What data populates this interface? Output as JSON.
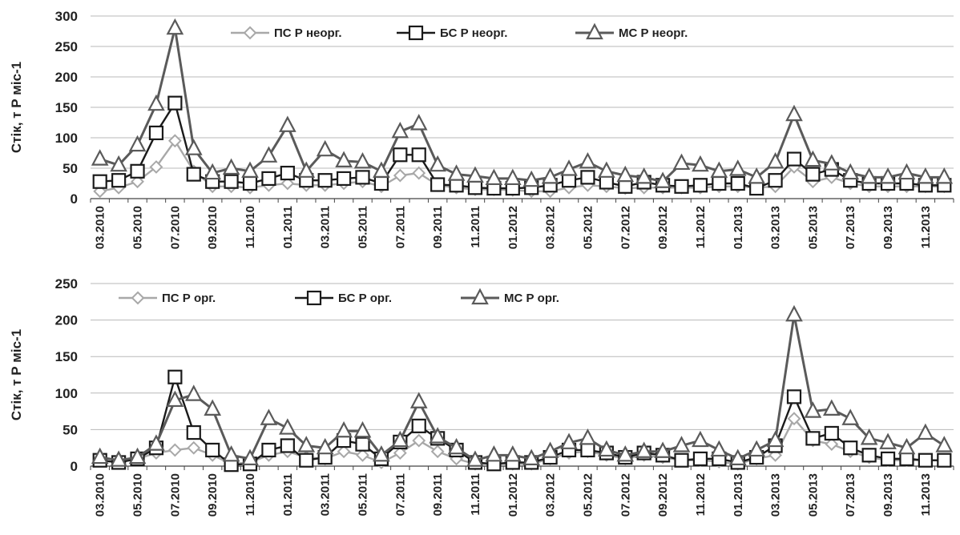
{
  "chart_data": [
    {
      "type": "line",
      "ylabel": "Стік, т Р міс-1",
      "ylim": [
        0,
        300
      ],
      "yticks": [
        0,
        50,
        100,
        150,
        200,
        250,
        300
      ],
      "grid": true,
      "legend_position": "top",
      "categories": [
        "03.2010",
        "04.2010",
        "05.2010",
        "06.2010",
        "07.2010",
        "08.2010",
        "09.2010",
        "10.2010",
        "11.2010",
        "12.2010",
        "01.2011",
        "02.2011",
        "03.2011",
        "04.2011",
        "05.2011",
        "06.2011",
        "07.2011",
        "08.2011",
        "09.2011",
        "10.2011",
        "11.2011",
        "12.2011",
        "01.2012",
        "02.2012",
        "03.2012",
        "04.2012",
        "05.2012",
        "06.2012",
        "07.2012",
        "08.2012",
        "09.2012",
        "10.2012",
        "11.2012",
        "12.2012",
        "01.2013",
        "02.2013",
        "03.2013",
        "04.2013",
        "05.2013",
        "06.2013",
        "07.2013",
        "08.2013",
        "09.2013",
        "10.2013",
        "11.2013",
        "12.2013"
      ],
      "tick_labels": [
        "03.2010",
        "05.2010",
        "07.2010",
        "09.2010",
        "11.2010",
        "01.2011",
        "03.2011",
        "05.2011",
        "07.2011",
        "09.2011",
        "11.2011",
        "01.2012",
        "03.2012",
        "05.2012",
        "07.2012",
        "09.2012",
        "11.2012",
        "01.2013",
        "03.2013",
        "05.2013",
        "07.2013",
        "09.2013",
        "11.2013"
      ],
      "series": [
        {
          "name": "ПС Р неорг.",
          "marker": "diamond",
          "color": "#a8a8a8",
          "values": [
            12,
            18,
            28,
            52,
            95,
            45,
            20,
            20,
            18,
            22,
            25,
            22,
            22,
            25,
            28,
            20,
            38,
            42,
            22,
            18,
            15,
            15,
            14,
            12,
            12,
            18,
            22,
            20,
            17,
            18,
            18,
            18,
            18,
            20,
            20,
            18,
            20,
            52,
            28,
            35,
            25,
            20,
            20,
            20,
            20,
            20
          ]
        },
        {
          "name": "БС Р неорг.",
          "marker": "square",
          "color": "#1a1a1a",
          "values": [
            28,
            30,
            45,
            108,
            157,
            40,
            28,
            28,
            25,
            33,
            42,
            30,
            30,
            33,
            35,
            25,
            72,
            72,
            23,
            22,
            18,
            17,
            17,
            18,
            22,
            30,
            35,
            27,
            20,
            27,
            22,
            20,
            22,
            25,
            25,
            17,
            30,
            65,
            40,
            48,
            30,
            25,
            25,
            25,
            22,
            22
          ]
        },
        {
          "name": "МС Р неорг.",
          "marker": "triangle",
          "color": "#5a5a5a",
          "values": [
            65,
            55,
            88,
            155,
            280,
            82,
            42,
            50,
            45,
            70,
            120,
            45,
            80,
            62,
            60,
            45,
            110,
            123,
            55,
            40,
            37,
            33,
            33,
            30,
            35,
            48,
            60,
            45,
            38,
            35,
            28,
            58,
            55,
            45,
            48,
            35,
            60,
            138,
            63,
            57,
            42,
            35,
            35,
            42,
            35,
            35
          ]
        }
      ]
    },
    {
      "type": "line",
      "ylabel": "Стік, т Р міс-1",
      "ylim": [
        0,
        250
      ],
      "yticks": [
        0,
        50,
        100,
        150,
        200,
        250
      ],
      "grid": true,
      "legend_position": "top",
      "categories": [
        "03.2010",
        "04.2010",
        "05.2010",
        "06.2010",
        "07.2010",
        "08.2010",
        "09.2010",
        "10.2010",
        "11.2010",
        "12.2010",
        "01.2011",
        "02.2011",
        "03.2011",
        "04.2011",
        "05.2011",
        "06.2011",
        "07.2011",
        "08.2011",
        "09.2011",
        "10.2011",
        "11.2011",
        "12.2011",
        "01.2012",
        "02.2012",
        "03.2012",
        "04.2012",
        "05.2012",
        "06.2012",
        "07.2012",
        "08.2012",
        "09.2012",
        "10.2012",
        "11.2012",
        "12.2012",
        "01.2013",
        "02.2013",
        "03.2013",
        "04.2013",
        "05.2013",
        "06.2013",
        "07.2013",
        "08.2013",
        "09.2013",
        "10.2013",
        "11.2013",
        "12.2013"
      ],
      "tick_labels": [
        "03.2010",
        "05.2010",
        "07.2010",
        "09.2010",
        "11.2010",
        "01.2011",
        "03.2011",
        "05.2011",
        "07.2011",
        "09.2011",
        "11.2011",
        "01.2012",
        "03.2012",
        "05.2012",
        "07.2012",
        "09.2012",
        "11.2012",
        "01.2013",
        "03.2013",
        "05.2013",
        "07.2013",
        "09.2013",
        "11.2013"
      ],
      "series": [
        {
          "name": "ПС Р орг.",
          "marker": "diamond",
          "color": "#a8a8a8",
          "values": [
            8,
            5,
            10,
            18,
            22,
            25,
            15,
            3,
            5,
            15,
            20,
            12,
            10,
            20,
            15,
            5,
            18,
            35,
            20,
            10,
            3,
            3,
            3,
            3,
            10,
            18,
            20,
            15,
            10,
            15,
            12,
            8,
            8,
            6,
            3,
            10,
            15,
            65,
            35,
            30,
            20,
            12,
            8,
            8,
            8,
            8
          ]
        },
        {
          "name": "БС Р орг.",
          "marker": "square",
          "color": "#1a1a1a",
          "values": [
            8,
            5,
            10,
            25,
            122,
            46,
            22,
            2,
            3,
            22,
            28,
            8,
            12,
            35,
            30,
            10,
            33,
            55,
            38,
            22,
            5,
            3,
            5,
            5,
            12,
            22,
            22,
            18,
            12,
            18,
            15,
            8,
            10,
            10,
            5,
            12,
            28,
            95,
            38,
            45,
            25,
            15,
            10,
            10,
            8,
            8
          ]
        },
        {
          "name": "МС Р орг.",
          "marker": "triangle",
          "color": "#5a5a5a",
          "values": [
            12,
            8,
            12,
            30,
            90,
            98,
            78,
            15,
            10,
            65,
            52,
            28,
            25,
            48,
            48,
            15,
            35,
            88,
            40,
            25,
            8,
            15,
            15,
            10,
            20,
            32,
            38,
            22,
            15,
            20,
            20,
            28,
            35,
            22,
            10,
            22,
            35,
            207,
            75,
            78,
            65,
            38,
            32,
            25,
            45,
            28
          ]
        }
      ]
    }
  ]
}
